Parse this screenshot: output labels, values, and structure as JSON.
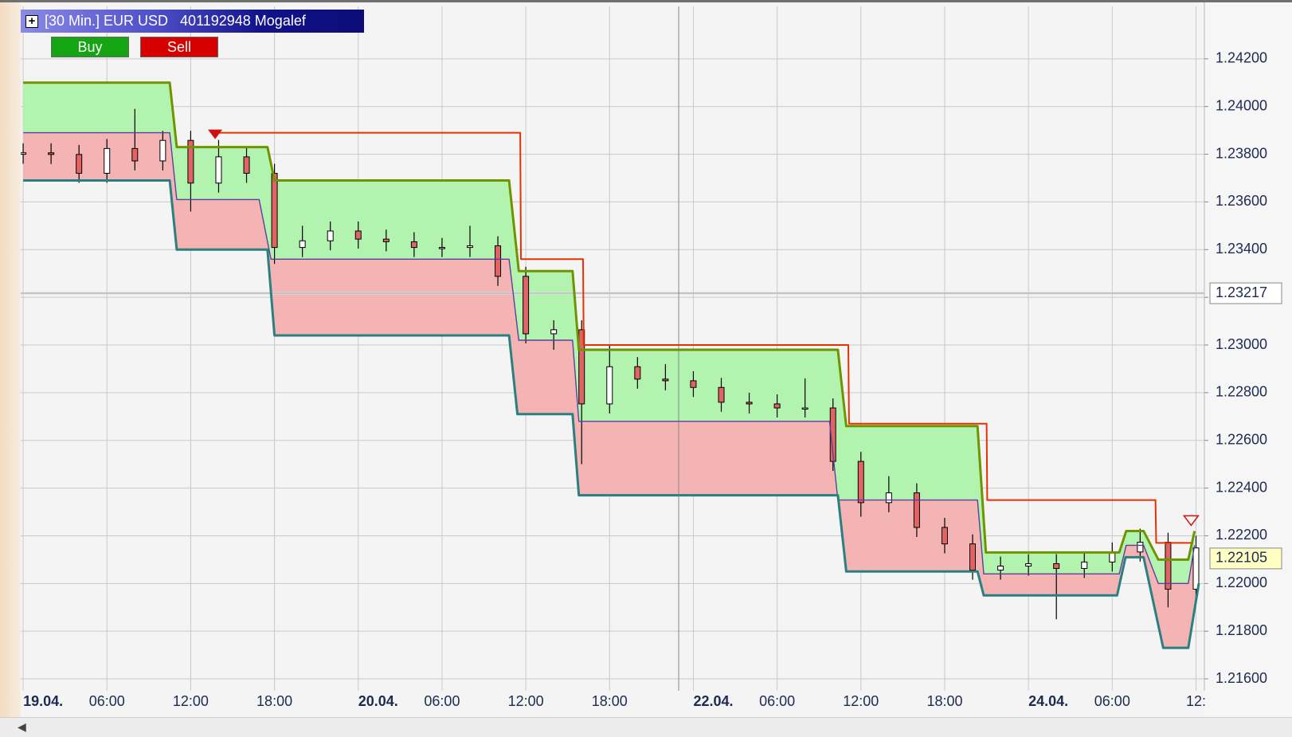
{
  "header": {
    "title": "[30 Min.] EUR USD   401192948 Mogalef"
  },
  "buttons": [
    "Buy",
    "Sell"
  ],
  "chart_data": {
    "type": "candlestick",
    "xlim": [
      -0.35,
      169.2
    ],
    "ylim": [
      1.2155,
      1.2442
    ],
    "grid": true,
    "xticks": [
      {
        "value": 0,
        "label": "19.04."
      },
      {
        "value": 12,
        "label": "06:00"
      },
      {
        "value": 24,
        "label": "12:00"
      },
      {
        "value": 36,
        "label": "18:00"
      },
      {
        "value": 48,
        "label": "20.04."
      },
      {
        "value": 60,
        "label": "06:00"
      },
      {
        "value": 72,
        "label": "12:00"
      },
      {
        "value": 84,
        "label": "18:00"
      },
      {
        "value": 96,
        "label": "22.04."
      },
      {
        "value": 108,
        "label": "06:00"
      },
      {
        "value": 120,
        "label": "12:00"
      },
      {
        "value": 132,
        "label": "18:00"
      },
      {
        "value": 144,
        "label": "24.04."
      },
      {
        "value": 156,
        "label": "06:00"
      },
      {
        "value": 168,
        "label": "12:"
      }
    ],
    "yticks": [
      {
        "value": 1.216,
        "label": "1.21600"
      },
      {
        "value": 1.218,
        "label": "1.21800"
      },
      {
        "value": 1.22,
        "label": "1.22000"
      },
      {
        "value": 1.222,
        "label": "1.22200"
      },
      {
        "value": 1.224,
        "label": "1.22400"
      },
      {
        "value": 1.226,
        "label": "1.22600"
      },
      {
        "value": 1.228,
        "label": "1.22800"
      },
      {
        "value": 1.23,
        "label": "1.23000"
      },
      {
        "value": 1.232,
        "label": "1.23200"
      },
      {
        "value": 1.234,
        "label": "1.23400"
      },
      {
        "value": 1.236,
        "label": "1.23600"
      },
      {
        "value": 1.238,
        "label": "1.23800"
      },
      {
        "value": 1.24,
        "label": "1.24000"
      },
      {
        "value": 1.242,
        "label": "1.24200"
      }
    ],
    "series": [
      {
        "color": "#6f9400",
        "fill_below": "#b3f3b0",
        "x": [
          0,
          21,
          22,
          35,
          36,
          69.6,
          71,
          78.7,
          79.6,
          116.7,
          117.9,
          136.7,
          137.9,
          157,
          158,
          160.5,
          162.6,
          166.9,
          167.8
        ],
        "values": [
          1.241,
          1.241,
          1.2383,
          1.2383,
          1.2369,
          1.2369,
          1.2331,
          1.2331,
          1.2298,
          1.2298,
          1.2266,
          1.2266,
          1.2213,
          1.2213,
          1.2222,
          1.2222,
          1.221,
          1.221,
          1.2222
        ]
      },
      {
        "color": "#5b3fa0",
        "fill_below": "#f4b4b4",
        "x": [
          0,
          21,
          22,
          33.8,
          35.5,
          69.6,
          71,
          78.7,
          79.6,
          115.5,
          116.7,
          136.7,
          137.6,
          157,
          158,
          160.5,
          162.6,
          166.9,
          167.8
        ],
        "values": [
          1.2389,
          1.2389,
          1.2361,
          1.2361,
          1.2336,
          1.2336,
          1.2302,
          1.2302,
          1.2268,
          1.2268,
          1.2235,
          1.2235,
          1.2204,
          1.2204,
          1.2216,
          1.2216,
          1.22,
          1.22,
          1.2216
        ]
      },
      {
        "color": "#2a8080",
        "x": [
          0,
          21,
          22,
          35,
          36,
          69.6,
          70.8,
          78.7,
          79.6,
          116.7,
          117.9,
          136.7,
          137.6,
          156.7,
          157.9,
          160.5,
          163.3,
          166.9,
          168.4
        ],
        "values": [
          1.2369,
          1.2369,
          1.234,
          1.234,
          1.2304,
          1.2304,
          1.2271,
          1.2271,
          1.2237,
          1.2237,
          1.2205,
          1.2205,
          1.2195,
          1.2195,
          1.2211,
          1.2211,
          1.2173,
          1.2173,
          1.22
        ]
      },
      {
        "color": "#e83000",
        "x": [
          27.5,
          71.2,
          71.3,
          80.2,
          80.3,
          118.2,
          118.3,
          138,
          138.1,
          162.2,
          162.3,
          167.3
        ],
        "values": [
          1.2389,
          1.2389,
          1.2336,
          1.2336,
          1.23,
          1.23,
          1.2267,
          1.2267,
          1.2235,
          1.2235,
          1.2217,
          1.2217
        ]
      }
    ],
    "candles": {
      "up_color": "#ffffff",
      "down_color": "#e06464",
      "x": [
        0,
        4,
        8,
        12,
        16,
        20,
        24,
        28,
        32,
        36,
        40,
        44,
        48,
        52,
        56,
        60,
        64,
        68,
        72,
        76,
        80,
        84,
        88,
        92,
        96,
        100,
        104,
        108,
        112,
        116,
        120,
        124,
        128,
        132,
        136,
        140,
        144,
        148,
        152,
        156,
        160,
        164,
        168
      ],
      "open": [
        1.238,
        1.23806,
        1.23799,
        1.2372,
        1.23824,
        1.23772,
        1.23858,
        1.23679,
        1.23789,
        1.2372,
        1.23409,
        1.23437,
        1.23478,
        1.23444,
        1.23433,
        1.23409,
        1.23409,
        1.23416,
        1.23288,
        1.23047,
        1.23064,
        1.22753,
        1.22909,
        1.22857,
        1.2285,
        1.22822,
        1.2276,
        1.22753,
        1.22736,
        1.22736,
        1.22512,
        1.22339,
        1.2238,
        1.22235,
        1.22166,
        1.22056,
        1.22073,
        1.22083,
        1.22063,
        1.2209,
        1.22132,
        1.22173,
        1.21976
      ],
      "high": [
        1.23846,
        1.23846,
        1.23839,
        1.23864,
        1.2399,
        1.23898,
        1.23898,
        1.2386,
        1.23829,
        1.2376,
        1.235,
        1.23518,
        1.23518,
        1.23484,
        1.23473,
        1.23449,
        1.235,
        1.23456,
        1.23328,
        1.23104,
        1.23104,
        1.23,
        1.22949,
        1.2292,
        1.2289,
        1.22862,
        1.228,
        1.22793,
        1.2286,
        1.22776,
        1.22552,
        1.2245,
        1.2242,
        1.22275,
        1.22206,
        1.22113,
        1.22123,
        1.22123,
        1.2213,
        1.22172,
        1.2223,
        1.22213,
        1.222
      ],
      "low": [
        1.2376,
        1.23759,
        1.2368,
        1.2368,
        1.23732,
        1.23732,
        1.2356,
        1.23639,
        1.2368,
        1.2334,
        1.23369,
        1.23397,
        1.23404,
        1.23393,
        1.23369,
        1.23369,
        1.23369,
        1.23248,
        1.23007,
        1.2298,
        1.225,
        1.22713,
        1.22817,
        1.2281,
        1.22782,
        1.2272,
        1.22713,
        1.22696,
        1.22696,
        1.22472,
        1.2228,
        1.22299,
        1.22195,
        1.22126,
        1.22016,
        1.22016,
        1.22033,
        1.2185,
        1.22023,
        1.2205,
        1.22092,
        1.219,
        1.21936
      ],
      "close": [
        1.23806,
        1.23799,
        1.2372,
        1.23824,
        1.23772,
        1.23858,
        1.23679,
        1.23789,
        1.2372,
        1.23409,
        1.23437,
        1.23478,
        1.23444,
        1.23433,
        1.23409,
        1.23409,
        1.23416,
        1.23288,
        1.23047,
        1.23064,
        1.22753,
        1.22909,
        1.22857,
        1.2285,
        1.22822,
        1.2276,
        1.22753,
        1.22736,
        1.22736,
        1.22512,
        1.22339,
        1.2238,
        1.22235,
        1.22166,
        1.22056,
        1.22073,
        1.22083,
        1.22063,
        1.2209,
        1.22132,
        1.22173,
        1.21976,
        1.22149
      ]
    },
    "crosshair": {
      "x": 93.9,
      "price": 1.23217
    },
    "last_price": 1.22105
  }
}
